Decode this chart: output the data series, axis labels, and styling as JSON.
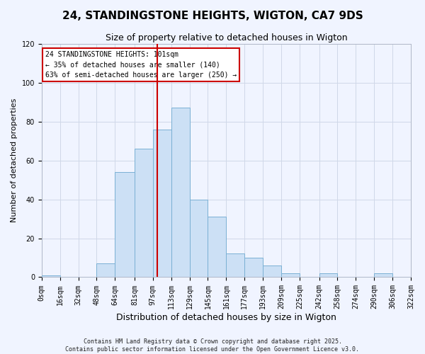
{
  "title": "24, STANDINGSTONE HEIGHTS, WIGTON, CA7 9DS",
  "subtitle": "Size of property relative to detached houses in Wigton",
  "xlabel": "Distribution of detached houses by size in Wigton",
  "ylabel": "Number of detached properties",
  "bin_edges": [
    0,
    16,
    32,
    48,
    64,
    81,
    97,
    113,
    129,
    145,
    161,
    177,
    193,
    209,
    225,
    242,
    258,
    274,
    290,
    306,
    322
  ],
  "bin_labels": [
    "0sqm",
    "16sqm",
    "32sqm",
    "48sqm",
    "64sqm",
    "81sqm",
    "97sqm",
    "113sqm",
    "129sqm",
    "145sqm",
    "161sqm",
    "177sqm",
    "193sqm",
    "209sqm",
    "225sqm",
    "242sqm",
    "258sqm",
    "274sqm",
    "290sqm",
    "306sqm",
    "322sqm"
  ],
  "counts": [
    1,
    0,
    0,
    7,
    54,
    66,
    76,
    87,
    40,
    31,
    12,
    10,
    6,
    2,
    0,
    2,
    0,
    0,
    2,
    0
  ],
  "bar_color": "#cce0f5",
  "bar_edge_color": "#7ab0d4",
  "grid_color": "#d0d8e8",
  "background_color": "#f0f4ff",
  "vline_x": 101,
  "vline_color": "#cc0000",
  "ylim": [
    0,
    120
  ],
  "yticks": [
    0,
    20,
    40,
    60,
    80,
    100,
    120
  ],
  "annotation_text": "24 STANDINGSTONE HEIGHTS: 101sqm\n← 35% of detached houses are smaller (140)\n63% of semi-detached houses are larger (250) →",
  "footnote1": "Contains HM Land Registry data © Crown copyright and database right 2025.",
  "footnote2": "Contains public sector information licensed under the Open Government Licence v3.0.",
  "title_fontsize": 11,
  "subtitle_fontsize": 9,
  "xlabel_fontsize": 9,
  "ylabel_fontsize": 8,
  "tick_fontsize": 7,
  "annot_fontsize": 7,
  "footnote_fontsize": 6
}
